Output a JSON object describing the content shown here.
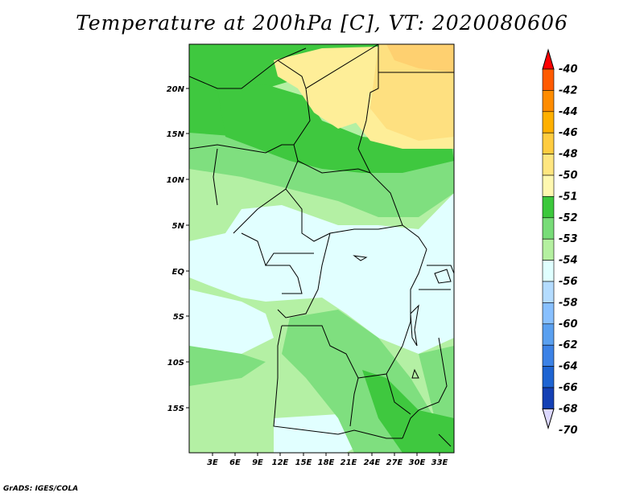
{
  "title": "Temperature at 200hPa [C], VT: 2020080606",
  "credit": "GrADS: IGES/COLA",
  "map": {
    "lat_labels": [
      "20N",
      "15N",
      "10N",
      "5N",
      "EQ",
      "5S",
      "10S",
      "15S"
    ],
    "lon_labels": [
      "3E",
      "6E",
      "9E",
      "12E",
      "15E",
      "18E",
      "21E",
      "24E",
      "27E",
      "30E",
      "33E"
    ]
  },
  "colors": {
    "c1": "#fea0a0",
    "c2": "#fed070",
    "c3": "#fee080",
    "c4": "#feee98",
    "g52": "#3fc83f",
    "g53": "#7fdf7f",
    "g54": "#b4f0a4",
    "cyan": "#e1ffff"
  },
  "legend": {
    "labels": [
      "-40",
      "-42",
      "-44",
      "-46",
      "-48",
      "-50",
      "-51",
      "-52",
      "-53",
      "-54",
      "-56",
      "-58",
      "-60",
      "-62",
      "-64",
      "-66",
      "-68",
      "-70"
    ],
    "colors": [
      "#ff2a00",
      "#ff5a00",
      "#ff8c00",
      "#ffb000",
      "#ffcc40",
      "#ffe680",
      "#fff8b0",
      "#3cc83c",
      "#78dc78",
      "#b4f0a0",
      "#e0ffff",
      "#b4dcff",
      "#88c0ff",
      "#5aa0f0",
      "#3c82e6",
      "#1e64d2",
      "#1440b4",
      "#0a1e8c"
    ],
    "top_arrow_color": "#ff0000",
    "bottom_arrow_color": "#dcd8ff"
  }
}
